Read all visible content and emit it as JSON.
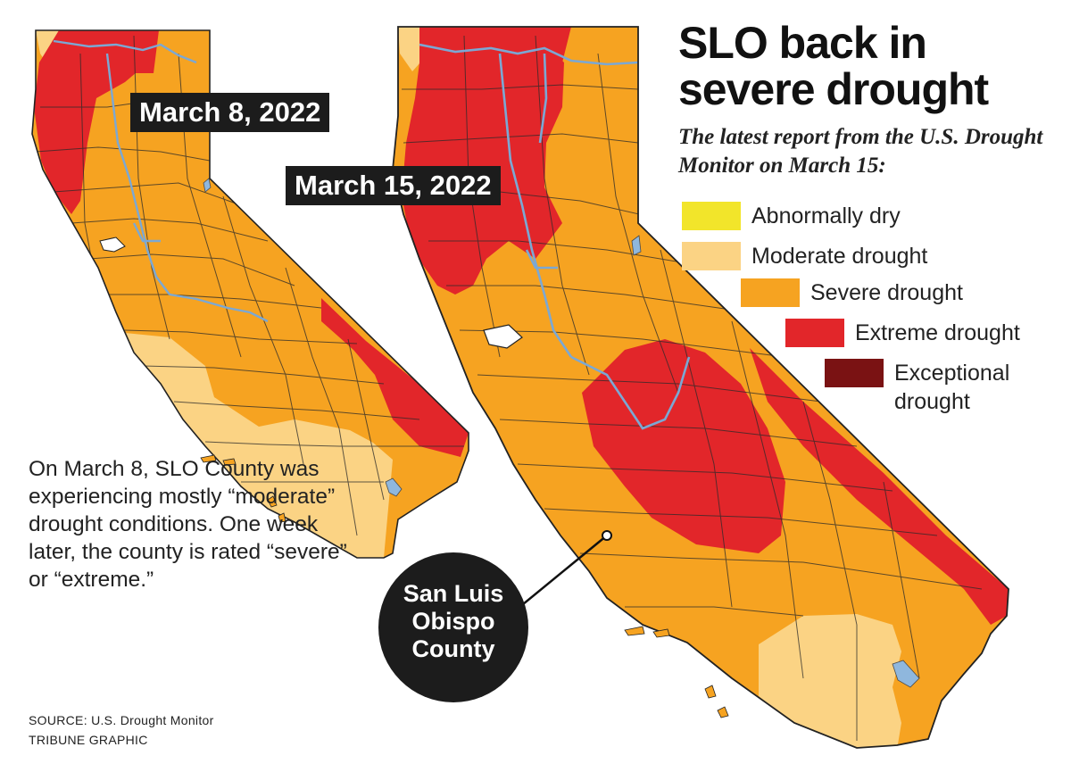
{
  "title": "SLO back in severe drought",
  "subtitle": "The latest report from the U.S. Drought Monitor on March 15:",
  "maps": [
    {
      "date_label": "March 8, 2022"
    },
    {
      "date_label": "March 15, 2022"
    }
  ],
  "legend": [
    {
      "label": "Abnormally dry",
      "color": "#f2e52a"
    },
    {
      "label": "Moderate drought",
      "color": "#fbd384"
    },
    {
      "label": "Severe drought",
      "color": "#f6a321"
    },
    {
      "label": "Extreme drought",
      "color": "#e2262a"
    },
    {
      "label": "Exceptional drought",
      "color": "#7a1213"
    }
  ],
  "callout": "San Luis Obispo County",
  "caption": "On March 8, SLO County was experiencing mostly “moderate” drought conditions. One week later, the county is rated “severe” or “extreme.”",
  "source": "SOURCE: U.S. Drought Monitor",
  "credit": "TRIBUNE GRAPHIC",
  "colors": {
    "abnormally_dry": "#f2e52a",
    "moderate": "#fbd384",
    "severe": "#f6a321",
    "extreme": "#e2262a",
    "exceptional": "#7a1213",
    "water": "#8fb7dd",
    "border": "#222222"
  }
}
